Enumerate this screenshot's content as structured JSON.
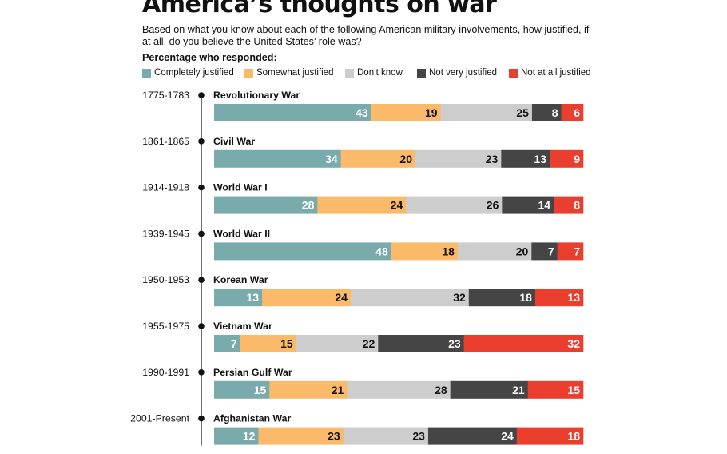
{
  "title": "America’s thoughts on war",
  "subtitle": "Based on what you know about each of the following American military involvements, how justified, if at all, do you believe the United States’ role was?",
  "scale_note": "Percentage who responded:",
  "colors": {
    "completely": "#7aabac",
    "somewhat": "#fbb96a",
    "dont_know": "#cdcdcd",
    "not_very": "#454545",
    "not_at_all": "#ea3e2f",
    "timeline": "#333333"
  },
  "chart_data": {
    "type": "bar",
    "orientation": "horizontal",
    "stacked": true,
    "title": "America’s thoughts on war",
    "categories": [
      "Revolutionary War",
      "Civil War",
      "World War I",
      "World War II",
      "Korean War",
      "Vietnam War",
      "Persian Gulf War",
      "Afghanistan War"
    ],
    "periods": [
      "1775-1783",
      "1861-1865",
      "1914-1918",
      "1939-1945",
      "1950-1953",
      "1955-1975",
      "1990-1991",
      "2001-Present"
    ],
    "series": [
      {
        "name": "Completely justified",
        "color": "#7aabac",
        "label_color": "#ffffff",
        "values": [
          43,
          34,
          28,
          48,
          13,
          7,
          15,
          12
        ]
      },
      {
        "name": "Somewhat justified",
        "color": "#fbb96a",
        "label_color": "#111111",
        "values": [
          19,
          20,
          24,
          18,
          24,
          15,
          21,
          23
        ]
      },
      {
        "name": "Don’t know",
        "color": "#cdcdcd",
        "label_color": "#111111",
        "values": [
          25,
          23,
          26,
          20,
          32,
          22,
          28,
          23
        ]
      },
      {
        "name": "Not very justified",
        "color": "#454545",
        "label_color": "#ffffff",
        "values": [
          8,
          13,
          14,
          7,
          18,
          23,
          21,
          24
        ]
      },
      {
        "name": "Not at all justified",
        "color": "#ea3e2f",
        "label_color": "#ffffff",
        "values": [
          6,
          9,
          8,
          7,
          13,
          32,
          15,
          18
        ]
      }
    ],
    "legend": "top",
    "grid": false
  }
}
